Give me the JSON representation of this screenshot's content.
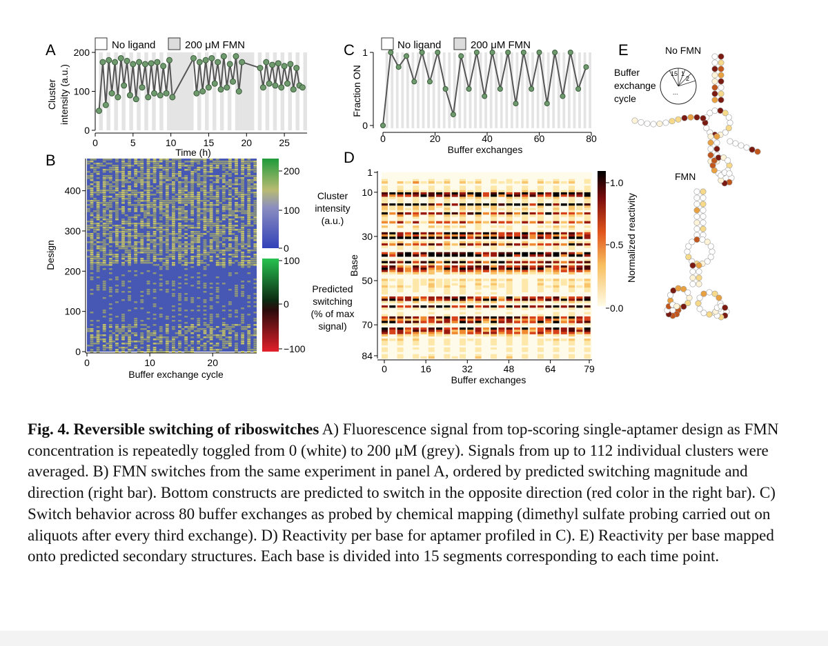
{
  "figure": {
    "panel_labels": [
      "A",
      "B",
      "C",
      "D",
      "E"
    ],
    "legend": {
      "no_ligand": "No ligand",
      "fmn": "200 μM FMN"
    },
    "panel_a": {
      "ylabel_1": "Cluster",
      "ylabel_2": "intensity (a.u.)",
      "xlabel": "Time (h)",
      "xticks": [
        "0",
        "5",
        "10",
        "15",
        "20",
        "25"
      ],
      "yticks": [
        "0",
        "100",
        "200"
      ]
    },
    "panel_b": {
      "ylabel": "Design",
      "xlabel": "Buffer exchange cycle",
      "xticks": [
        "0",
        "10",
        "20"
      ],
      "yticks": [
        "0",
        "100",
        "200",
        "300",
        "400"
      ],
      "colorbar1_ticks": [
        "200",
        "100",
        "0"
      ],
      "colorbar1_label": [
        "Cluster",
        "intensity",
        "(a.u.)"
      ],
      "colorbar2_ticks": [
        "100",
        "0",
        "−100"
      ],
      "colorbar2_label": [
        "Predicted",
        "switching",
        "(% of max",
        "signal)"
      ]
    },
    "panel_c": {
      "ylabel": "Fraction ON",
      "xlabel": "Buffer exchanges",
      "xticks": [
        "0",
        "20",
        "40",
        "60",
        "80"
      ],
      "yticks": [
        "0",
        "1"
      ]
    },
    "panel_d": {
      "ylabel": "Base",
      "xlabel": "Buffer exchanges",
      "xticks": [
        "0",
        "16",
        "32",
        "48",
        "64",
        "79"
      ],
      "yticks": [
        "1",
        "10",
        "30",
        "50",
        "70",
        "84"
      ],
      "colorbar_label": "Normalized reactivity",
      "colorbar_ticks": [
        "1.0",
        "0.5",
        "0.0"
      ]
    },
    "panel_e": {
      "no_fmn": "No FMN",
      "fmn": "FMN",
      "pie_label": [
        "Buffer",
        "exchange",
        "cycle"
      ],
      "pie_numbers": [
        "15",
        "1",
        "2",
        "..."
      ]
    }
  },
  "chart_data": [
    {
      "type": "line",
      "panel": "A",
      "title": "",
      "xlabel": "Time (h)",
      "ylabel": "Cluster intensity (a.u.)",
      "xlim": [
        0,
        28
      ],
      "ylim": [
        0,
        200
      ],
      "shaded_fmn_intervals": [
        [
          9.5,
          13
        ],
        [
          19,
          21
        ]
      ],
      "x": [
        0.5,
        1,
        1.4,
        1.8,
        2.2,
        2.6,
        3,
        3.4,
        3.8,
        4.2,
        4.6,
        5,
        5.4,
        5.8,
        6.2,
        6.6,
        7,
        7.4,
        7.8,
        8.2,
        8.6,
        9,
        9.4,
        9.8,
        10.2,
        13,
        13.4,
        13.8,
        14.2,
        14.6,
        15,
        15.4,
        15.8,
        16.2,
        16.6,
        17,
        17.4,
        17.8,
        18.2,
        18.6,
        19,
        19.4,
        21.8,
        22.2,
        22.6,
        23,
        23.4,
        23.8,
        24.2,
        24.6,
        25,
        25.4,
        25.8,
        26.2,
        26.6,
        27,
        27.4
      ],
      "y": [
        50,
        175,
        65,
        180,
        95,
        175,
        85,
        185,
        115,
        178,
        90,
        170,
        80,
        175,
        110,
        170,
        85,
        172,
        95,
        175,
        90,
        165,
        95,
        180,
        85,
        185,
        95,
        175,
        100,
        180,
        110,
        185,
        120,
        175,
        105,
        190,
        110,
        170,
        125,
        190,
        100,
        175,
        160,
        110,
        175,
        120,
        168,
        115,
        172,
        110,
        165,
        120,
        170,
        105,
        160,
        115,
        110
      ]
    },
    {
      "type": "heatmap",
      "panel": "B",
      "xlabel": "Buffer exchange cycle",
      "ylabel": "Design",
      "xlim": [
        0,
        27
      ],
      "ylim": [
        0,
        480
      ],
      "colorbar_cluster_intensity_range": [
        0,
        200
      ],
      "colorbar_predicted_switching_range": [
        -100,
        100
      ]
    },
    {
      "type": "line",
      "panel": "C",
      "xlabel": "Buffer exchanges",
      "ylabel": "Fraction ON",
      "xlim": [
        0,
        80
      ],
      "ylim": [
        0,
        1
      ],
      "x": [
        0,
        3,
        6,
        9,
        12,
        15,
        18,
        21,
        24,
        27,
        30,
        33,
        36,
        39,
        42,
        45,
        48,
        51,
        54,
        57,
        60,
        63,
        66,
        69,
        72,
        75,
        78
      ],
      "y": [
        0,
        1,
        0.8,
        0.95,
        0.6,
        1,
        0.6,
        1,
        0.5,
        0.15,
        0.95,
        0.5,
        1,
        0.4,
        1,
        0.5,
        1,
        0.3,
        1,
        0.5,
        1,
        0.3,
        1,
        0.4,
        1,
        0.5,
        0.8
      ]
    },
    {
      "type": "heatmap",
      "panel": "D",
      "xlabel": "Buffer exchanges",
      "ylabel": "Base",
      "xlim": [
        0,
        79
      ],
      "ylim": [
        1,
        84
      ],
      "colorbar_label": "Normalized reactivity",
      "colorbar_range": [
        0,
        1.0
      ]
    }
  ],
  "caption": {
    "title": "Fig. 4. Reversible switching of riboswitches",
    "body": " A) Fluorescence signal from top-scoring single-aptamer design as FMN concentration is repeatedly toggled from 0 (white) to 200 μM (grey). Signals from up to 112 individual clusters were averaged. B) FMN switches from the same experiment in panel A, ordered by predicted switching magnitude and direction (right bar). Bottom constructs are predicted to switch in the opposite direction (red color in the right bar). C) Switch behavior across 80 buffer exchanges as probed by chemical mapping (dimethyl sulfate probing carried out on aliquots after every third exchange). D) Reactivity per base for aptamer profiled in C). E) Reactivity per base mapped onto predicted secondary structures. Each base is divided into 15 segments corresponding to each time point."
  }
}
